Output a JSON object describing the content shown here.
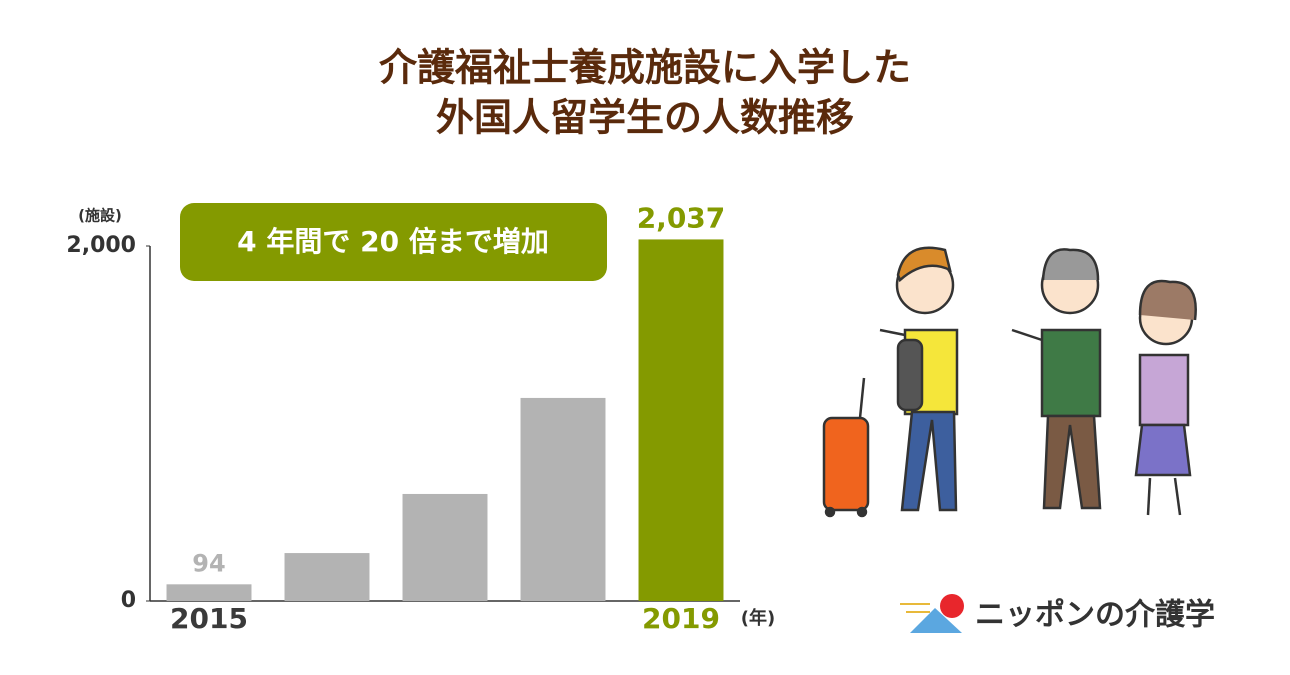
{
  "chart_data": {
    "type": "bar",
    "title": [
      "介護福祉士養成施設に入学した",
      "外国人留学生の人数推移"
    ],
    "y_unit": "(施設)",
    "x_unit": "(年)",
    "annotation": "4 年間で 20 倍まで増加",
    "categories": [
      "2015",
      null,
      null,
      null,
      "2019"
    ],
    "values": [
      94,
      270,
      603,
      1144,
      2037
    ],
    "value_labels": [
      "94",
      null,
      null,
      null,
      "2,037"
    ],
    "color": "#b3b3b3",
    "colors": [
      "#b3b3b3",
      "#b3b3b3",
      "#b3b3b3",
      "#b3b3b3",
      "#849a00"
    ],
    "ylim": [
      0,
      2000
    ],
    "yticks": [
      0,
      {
        "value": 2000,
        "label": "2,000"
      }
    ],
    "grid": false
  },
  "brand": "ニッポンの介護学"
}
